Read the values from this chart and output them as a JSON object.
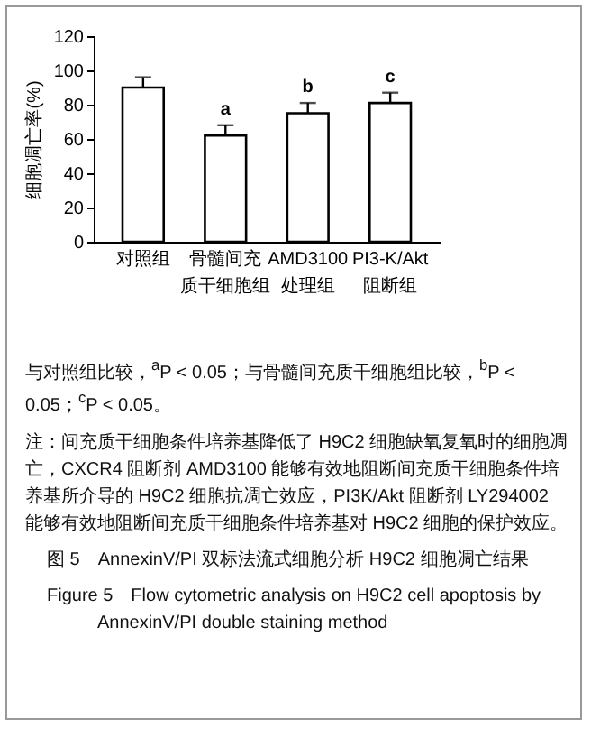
{
  "chart_data": {
    "type": "bar",
    "ylabel": "细胞凋亡率(%)",
    "categories": [
      "对照组",
      "骨髓间充质干细胞组",
      "AMD3100处理组",
      "PI3-K/Akt阻断组"
    ],
    "values": [
      90,
      62,
      75,
      81
    ],
    "errors": [
      6,
      6,
      6,
      6
    ],
    "color": "#ffffff",
    "ylim": [
      0,
      120
    ],
    "yticks": [
      0,
      20,
      40,
      60,
      80,
      100,
      120
    ],
    "grid": false,
    "annotations": [
      {
        "text": "a",
        "x": "骨髓间充质干细胞组",
        "y": 68
      },
      {
        "text": "b",
        "x": "AMD3100处理组",
        "y": 81
      },
      {
        "text": "c",
        "x": "PI3-K/Akt阻断组",
        "y": 87
      },
      "与对照组比较，$^{a}$P < 0.05；与骨髓间充质干细胞组比较，$^{b}$P < 0.05；$^{c}$P < 0.05。",
      "注：间充质干细胞条件培养基降低了 H9C2 细胞缺氧复氧时的细胞凋亡，CXCR4 阻断剂 AMD3100 能够有效地阻断间充质干细胞条件培养基所介导的 H9C2 细胞抗凋亡效应，PI3K/Akt 阻断剂 LY294002 能够有效地阻断间充质干细胞条件培养基对 H9C2 细胞的保护效应。",
      "图 5　AnnexinV/PI 双标法流式细胞分析 H9C2 细胞凋亡结果",
      "Figure 5　Flow cytometric analysis on H9C2 cell apoptosis by AnnexinV/PI double staining method"
    ]
  }
}
